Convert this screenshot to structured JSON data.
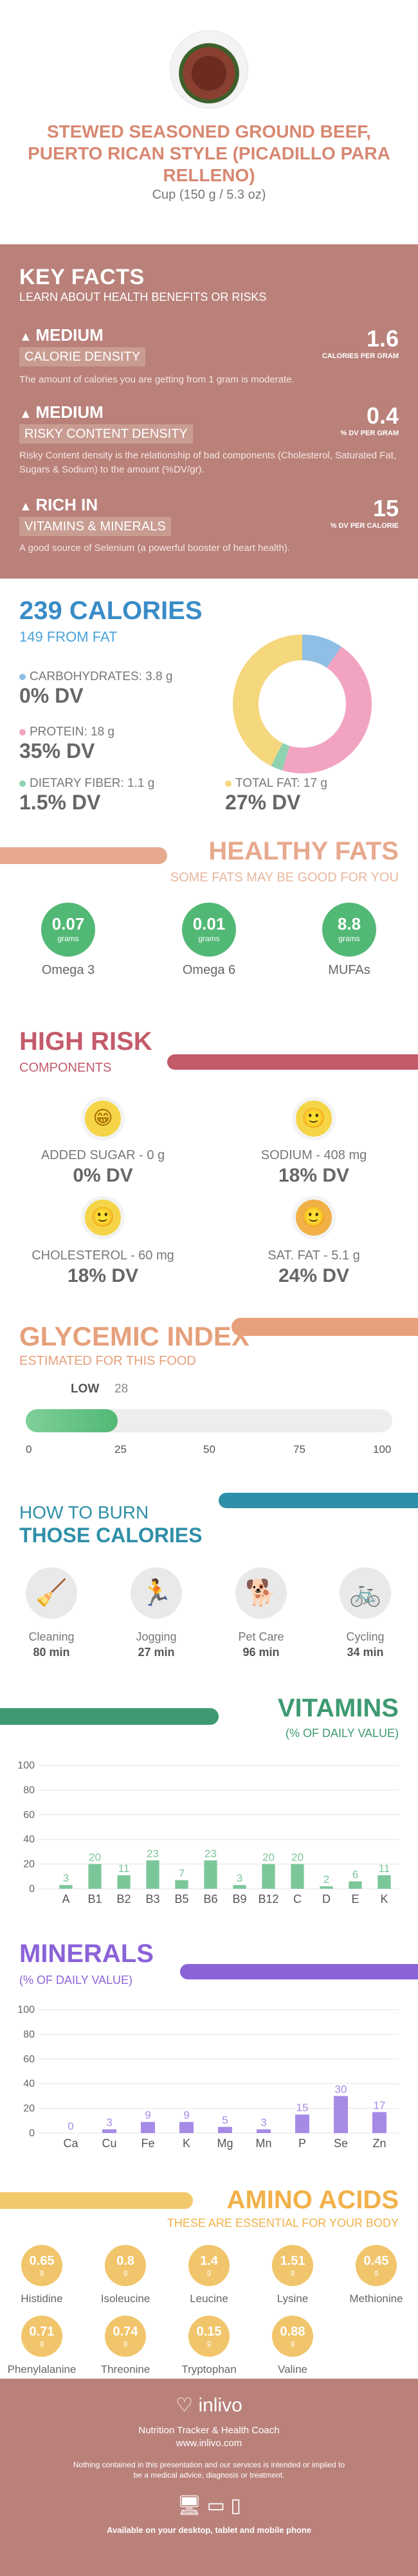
{
  "header": {
    "title": "STEWED SEASONED GROUND BEEF, PUERTO RICAN STYLE (PICADILLO PARA RELLENO)",
    "serving": "Cup (150 g / 5.3 oz)"
  },
  "key_facts": {
    "title": "KEY FACTS",
    "subtitle": "LEARN ABOUT HEALTH BENEFITS OR RISKS",
    "items": [
      {
        "level": "MEDIUM",
        "band": "CALORIE DENSITY",
        "value": "1.6",
        "unit": "CALORIES PER GRAM",
        "desc": "The amount of calories you are getting from 1 gram is moderate."
      },
      {
        "level": "MEDIUM",
        "band": "RISKY CONTENT DENSITY",
        "value": "0.4",
        "unit": "% DV PER GRAM",
        "desc": "Risky Content density is the relationship of bad components (Cholesterol, Saturated Fat, Sugars & Sodium) to the amount (%DV/gr)."
      },
      {
        "level": "RICH IN",
        "band": "VITAMINS & MINERALS",
        "value": "15",
        "unit": "% DV PER CALORIE",
        "desc": "A good source of Selenium (a powerful booster of heart health)."
      }
    ]
  },
  "calories": {
    "title": "239 CALORIES",
    "from_fat": "149 FROM FAT",
    "nutrients": [
      {
        "label": "CARBOHYDRATES: 3.8 g",
        "dv": "0% DV",
        "color": "#8fbfe4"
      },
      {
        "label": "PROTEIN: 18 g",
        "dv": "35% DV",
        "color": "#f2a3c2"
      },
      {
        "label": "DIETARY FIBER: 1.1 g",
        "dv": "1.5% DV",
        "color": "#8fd2b0"
      },
      {
        "label": "TOTAL FAT: 17 g",
        "dv": "27% DV",
        "color": "#f5d77e"
      }
    ]
  },
  "macro_donut": [
    {
      "name": "Carbohydrates",
      "grams": 3.8,
      "color": "#8fbfe4"
    },
    {
      "name": "Protein",
      "grams": 18,
      "color": "#f2a3c2"
    },
    {
      "name": "Dietary fiber",
      "grams": 1.1,
      "color": "#8fd2b0"
    },
    {
      "name": "Total fat",
      "grams": 17,
      "color": "#f5d77e"
    }
  ],
  "healthy_fats": {
    "title": "HEALTHY FATS",
    "subtitle": "SOME FATS MAY BE GOOD FOR YOU",
    "items": [
      {
        "value": "0.07",
        "unit": "grams",
        "name": "Omega 3"
      },
      {
        "value": "0.01",
        "unit": "grams",
        "name": "Omega 6"
      },
      {
        "value": "8.8",
        "unit": "grams",
        "name": "MUFAs"
      }
    ]
  },
  "high_risk": {
    "title": "HIGH RISK",
    "subtitle": "COMPONENTS",
    "items": [
      {
        "label": "ADDED SUGAR - 0 g",
        "dv": "0% DV",
        "face": "😁"
      },
      {
        "label": "SODIUM - 408 mg",
        "dv": "18% DV",
        "face": "🙂"
      },
      {
        "label": "CHOLESTEROL - 60 mg",
        "dv": "18% DV",
        "face": "🙂"
      },
      {
        "label": "SAT. FAT - 5.1 g",
        "dv": "24% DV",
        "face": "🙂"
      }
    ]
  },
  "glycemic": {
    "title": "GLYCEMIC INDEX",
    "subtitle": "ESTIMATED FOR THIS FOOD",
    "level": "LOW",
    "value": "28",
    "fill_fraction": 0.25,
    "ticks": [
      "0",
      "25",
      "50",
      "75",
      "100"
    ]
  },
  "burn": {
    "title_line1": "HOW TO BURN",
    "title_line2": "THOSE CALORIES",
    "activities": [
      {
        "name": "Cleaning",
        "time": "80 min",
        "icon": "🧹"
      },
      {
        "name": "Jogging",
        "time": "27 min",
        "icon": "🏃"
      },
      {
        "name": "Pet Care",
        "time": "96 min",
        "icon": "🐕"
      },
      {
        "name": "Cycling",
        "time": "34 min",
        "icon": "🚲"
      }
    ]
  },
  "vitamins": {
    "title": "VITAMINS",
    "subtitle": "(% OF DAILY VALUE)",
    "chart_data": {
      "type": "bar",
      "categories": [
        "A",
        "B1",
        "B2",
        "B3",
        "B5",
        "B6",
        "B9",
        "B12",
        "C",
        "D",
        "E",
        "K"
      ],
      "values": [
        3,
        20,
        11,
        23,
        7,
        23,
        3,
        20,
        20,
        2,
        6,
        11
      ],
      "ylim": [
        0,
        100
      ],
      "yticks": [
        0,
        20,
        40,
        60,
        80,
        100
      ],
      "color": "#7cc79a"
    }
  },
  "minerals": {
    "title": "MINERALS",
    "subtitle": "(% OF DAILY VALUE)",
    "chart_data": {
      "type": "bar",
      "categories": [
        "Ca",
        "Cu",
        "Fe",
        "K",
        "Mg",
        "Mn",
        "P",
        "Se",
        "Zn"
      ],
      "values": [
        0,
        3,
        9,
        9,
        5,
        3,
        15,
        30,
        17
      ],
      "ylim": [
        0,
        100
      ],
      "yticks": [
        0,
        20,
        40,
        60,
        80,
        100
      ],
      "color": "#a78ae6"
    }
  },
  "amino_acids": {
    "title": "AMINO ACIDS",
    "subtitle": "THESE ARE ESSENTIAL FOR YOUR BODY",
    "items": [
      {
        "value": "0.65",
        "unit": "g",
        "name": "Histidine"
      },
      {
        "value": "0.8",
        "unit": "g",
        "name": "Isoleucine"
      },
      {
        "value": "1.4",
        "unit": "g",
        "name": "Leucine"
      },
      {
        "value": "1.51",
        "unit": "g",
        "name": "Lysine"
      },
      {
        "value": "0.45",
        "unit": "g",
        "name": "Methionine"
      },
      {
        "value": "0.71",
        "unit": "g",
        "name": "Phenylalanine"
      },
      {
        "value": "0.74",
        "unit": "g",
        "name": "Threonine"
      },
      {
        "value": "0.15",
        "unit": "g",
        "name": "Tryptophan"
      },
      {
        "value": "0.88",
        "unit": "g",
        "name": "Valine"
      }
    ]
  },
  "footer": {
    "brand": "inlivo",
    "tagline": "Nutrition Tracker & Health Coach",
    "url": "www.inlivo.com",
    "disclaimer": "Nothing contained in this presentation and our services is intended or implied to be a medical advice, diagnosis or treatment.",
    "availability": "Available on your desktop, tablet and mobile phone"
  }
}
